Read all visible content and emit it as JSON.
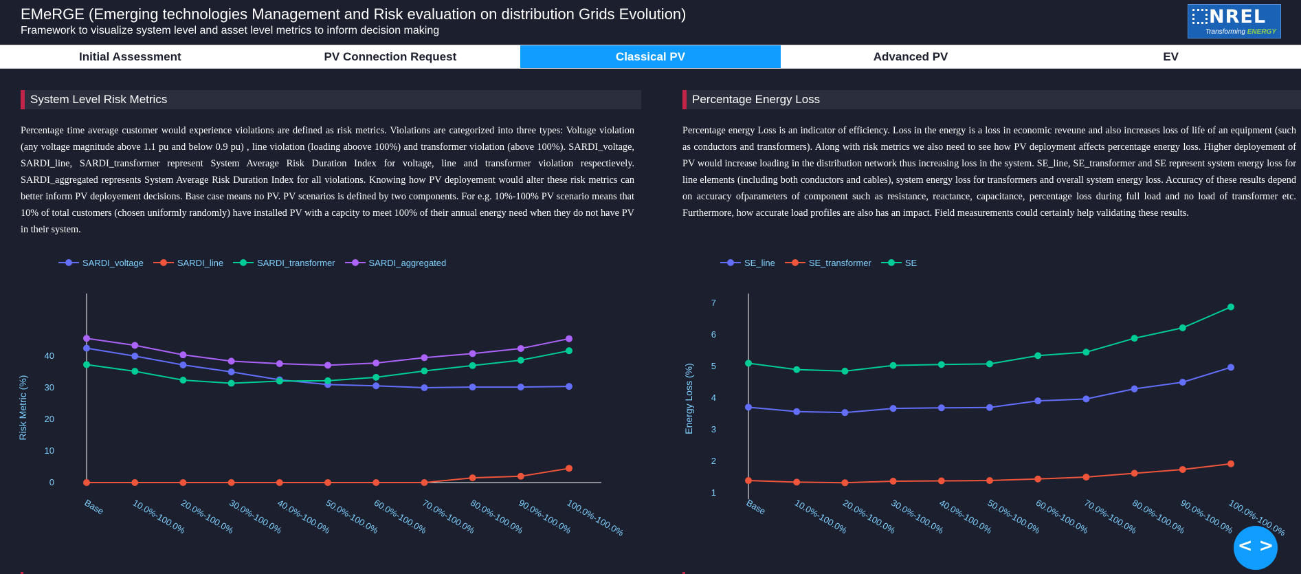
{
  "header": {
    "title": "EMeRGE (Emerging technologies Management and Risk evaluation on distribution Grids Evolution)",
    "subtitle": "Framework to visualize system level and asset level metrics to inform decision making",
    "logo": {
      "text": "NREL",
      "tagline": "Transforming",
      "tagline_accent": "ENERGY"
    }
  },
  "tabs": [
    {
      "label": "Initial Assessment",
      "active": false
    },
    {
      "label": "PV Connection Request",
      "active": false
    },
    {
      "label": "Classical PV",
      "active": true
    },
    {
      "label": "Advanced PV",
      "active": false
    },
    {
      "label": "EV",
      "active": false
    }
  ],
  "left_panel": {
    "title": "System Level Risk Metrics",
    "description": "Percentage time average customer would experience violations are defined as risk metrics. Violations are categorized into three types: Voltage violation (any voltage magnitude above 1.1 pu and below 0.9 pu) , line violation (loading aboove 100%) and transformer violation (above 100%). SARDI_voltage, SARDI_line, SARDI_transformer represent System Average Risk Duration Index for voltage, line and transformer violation respectievely. SARDI_aggregated represents System Average Risk Duration Index for all violations. Knowing how PV deployement would alter these risk metrics can better inform PV deployement decisions. Base case means no PV. PV scenarios is defined by two components. For e.g. 10%-100% PV scenario means that 10% of total customers (chosen uniformly randomly) have installed PV with a capcity to meet 100% of their annual energy need when they do not have PV in their system."
  },
  "right_panel": {
    "title": "Percentage Energy Loss",
    "description": "Percentage energy Loss is an indicator of efficiency. Loss in the energy is a loss in economic reveune and also increases loss of life of an equipment (such as conductors and transformers). Along with risk metrics we also need to see how PV deployment affects percentage energy loss. Higher deployement of PV would increase loading in the distribution network thus increasing loss in the system. SE_line, SE_transformer and SE represent system energy loss for line elements (including both conductors and cables), system energy loss for transformers and overall system energy loss. Accuracy of these results depend on accuracy ofparameters of component such as resistance, reactance, capacitance, percentage loss during full load and no load of transformer etc. Furthermore, how accurate load profiles are also has an impact. Field measurements could certainly help validating these results."
  },
  "fab": {
    "icon": "code-brackets-icon",
    "label": "< >"
  },
  "colors": {
    "accent": "#119dff",
    "panel_bar": "#c2244a",
    "blue": "#636efa",
    "red": "#ef553b",
    "green": "#00cc96",
    "purple": "#ab63fa",
    "tick_text": "#7fd1ff"
  },
  "chart_data": [
    {
      "type": "line",
      "categories": [
        "Base",
        "10.0%-100.0%",
        "20.0%-100.0%",
        "30.0%-100.0%",
        "40.0%-100.0%",
        "50.0%-100.0%",
        "60.0%-100.0%",
        "70.0%-100.0%",
        "80.0%-100.0%",
        "90.0%-100.0%",
        "100.0%-100.0%"
      ],
      "ylabel": "Risk Metric (%)",
      "ylim": [
        -2,
        50
      ],
      "yticks": [
        0,
        10,
        20,
        30,
        40
      ],
      "legend": "top-left",
      "series": [
        {
          "name": "SARDI_voltage",
          "color": "#636efa",
          "values": [
            42.5,
            40,
            37.2,
            35,
            32.5,
            31,
            30.6,
            30,
            30.2,
            30.2,
            30.4
          ]
        },
        {
          "name": "SARDI_line",
          "color": "#ef553b",
          "values": [
            0,
            0,
            0,
            0,
            0,
            0,
            0,
            0,
            1.5,
            2,
            4.5
          ]
        },
        {
          "name": "SARDI_transformer",
          "color": "#00cc96",
          "values": [
            37.3,
            35.2,
            32.4,
            31.4,
            32.1,
            32.2,
            33.3,
            35.3,
            37,
            38.7,
            41.7
          ]
        },
        {
          "name": "SARDI_aggregated",
          "color": "#ab63fa",
          "values": [
            45.6,
            43.4,
            40.4,
            38.4,
            37.6,
            37.1,
            37.8,
            39.5,
            40.8,
            42.4,
            45.5
          ]
        }
      ]
    },
    {
      "type": "line",
      "categories": [
        "Base",
        "10.0%-100.0%",
        "20.0%-100.0%",
        "30.0%-100.0%",
        "40.0%-100.0%",
        "50.0%-100.0%",
        "60.0%-100.0%",
        "70.0%-100.0%",
        "80.0%-100.0%",
        "90.0%-100.0%",
        "100.0%-100.0%"
      ],
      "ylabel": "Energy Loss (%)",
      "ylim": [
        0.8,
        7.5
      ],
      "yticks": [
        1,
        2,
        3,
        4,
        5,
        6,
        7
      ],
      "legend": "top-left",
      "series": [
        {
          "name": "SE_line",
          "color": "#636efa",
          "values": [
            3.71,
            3.57,
            3.54,
            3.67,
            3.69,
            3.7,
            3.91,
            3.97,
            4.29,
            4.5,
            4.97
          ]
        },
        {
          "name": "SE_transformer",
          "color": "#ef553b",
          "values": [
            1.39,
            1.34,
            1.32,
            1.37,
            1.38,
            1.39,
            1.44,
            1.5,
            1.62,
            1.74,
            1.92
          ]
        },
        {
          "name": "SE",
          "color": "#00cc96",
          "values": [
            5.1,
            4.9,
            4.85,
            5.03,
            5.06,
            5.08,
            5.34,
            5.45,
            5.89,
            6.22,
            6.88
          ]
        }
      ]
    }
  ]
}
